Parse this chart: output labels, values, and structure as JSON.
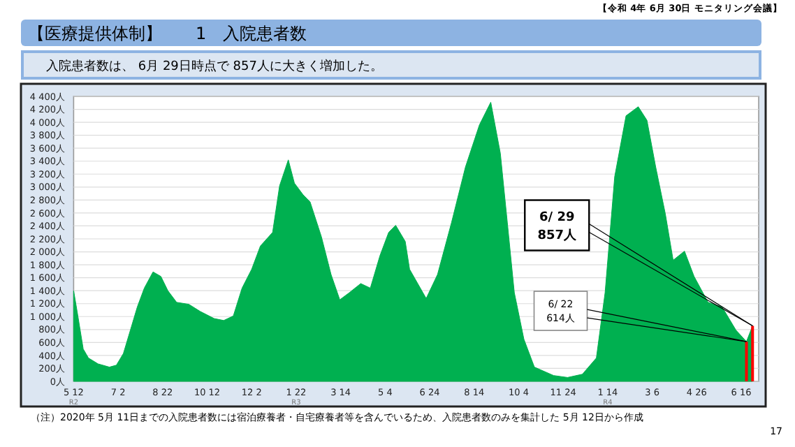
{
  "chart_data": {
    "type": "area",
    "title": "【医療提供体制】　　1　入院患者数",
    "subtitle": "入院患者数は、 6月 29日時点で 857人に大きく増加した。",
    "annotations": [
      "【令和 4年 6月 30日 モニタリング会議】",
      "（注）2020年 5月 11日までの入院患者数には宿泊療養者・自宅療養者等を含んでいるため、入院患者数のみを集計した 5月 12日から作成",
      "17",
      {
        "text": "6/ 29\n857人",
        "x": "2022-06-29",
        "y": 857
      },
      {
        "text": "6/ 22\n614人",
        "x": "2022-06-22",
        "y": 614
      }
    ],
    "grid": "y",
    "xlim": [
      "2020-05-12",
      "2022-07-06"
    ],
    "xticks": [
      {
        "value": "2020-05-12",
        "label": "5 12\nR2"
      },
      {
        "value": "2020-07-02",
        "label": "7 2"
      },
      {
        "value": "2020-08-22",
        "label": "8 22"
      },
      {
        "value": "2020-10-12",
        "label": "10 12"
      },
      {
        "value": "2020-12-02",
        "label": "12 2"
      },
      {
        "value": "2021-01-22",
        "label": "1 22\nR3"
      },
      {
        "value": "2021-03-14",
        "label": "3 14"
      },
      {
        "value": "2021-05-04",
        "label": "5 4"
      },
      {
        "value": "2021-06-24",
        "label": "6 24"
      },
      {
        "value": "2021-08-14",
        "label": "8 14"
      },
      {
        "value": "2021-10-04",
        "label": "10 4"
      },
      {
        "value": "2021-11-24",
        "label": "11 24"
      },
      {
        "value": "2022-01-14",
        "label": "1 14\nR4"
      },
      {
        "value": "2022-03-06",
        "label": "3 6"
      },
      {
        "value": "2022-04-26",
        "label": "4 26"
      },
      {
        "value": "2022-06-16",
        "label": "6 16"
      }
    ],
    "ylim": [
      0,
      4400
    ],
    "yticks": [
      {
        "value": 0,
        "label": "0人"
      },
      {
        "value": 200,
        "label": "200人"
      },
      {
        "value": 400,
        "label": "400人"
      },
      {
        "value": 600,
        "label": "600人"
      },
      {
        "value": 800,
        "label": "800人"
      },
      {
        "value": 1000,
        "label": "1 000人"
      },
      {
        "value": 1200,
        "label": "1 200人"
      },
      {
        "value": 1400,
        "label": "1 400人"
      },
      {
        "value": 1600,
        "label": "1 600人"
      },
      {
        "value": 1800,
        "label": "1 800人"
      },
      {
        "value": 2000,
        "label": "2 000人"
      },
      {
        "value": 2200,
        "label": "2 200人"
      },
      {
        "value": 2400,
        "label": "2 400人"
      },
      {
        "value": 2600,
        "label": "2 600人"
      },
      {
        "value": 2800,
        "label": "2 800人"
      },
      {
        "value": 3000,
        "label": "3 000人"
      },
      {
        "value": 3200,
        "label": "3 200人"
      },
      {
        "value": 3400,
        "label": "3 400人"
      },
      {
        "value": 3600,
        "label": "3 600人"
      },
      {
        "value": 3800,
        "label": "3 800人"
      },
      {
        "value": 4000,
        "label": "4 000人"
      },
      {
        "value": 4200,
        "label": "4 200人"
      },
      {
        "value": 4400,
        "label": "4 400人"
      }
    ],
    "series": [
      {
        "color": "#00b050",
        "x": [
          "2020-05-12",
          "2020-05-16",
          "2020-05-23",
          "2020-05-29",
          "2020-06-09",
          "2020-06-22",
          "2020-06-30",
          "2020-07-08",
          "2020-07-16",
          "2020-07-24",
          "2020-08-01",
          "2020-08-11",
          "2020-08-20",
          "2020-08-28",
          "2020-09-07",
          "2020-09-21",
          "2020-10-04",
          "2020-10-20",
          "2020-10-31",
          "2020-11-11",
          "2020-11-21",
          "2020-12-02",
          "2020-12-12",
          "2020-12-26",
          "2021-01-03",
          "2021-01-13",
          "2021-01-20",
          "2021-01-30",
          "2021-02-07",
          "2021-02-20",
          "2021-03-03",
          "2021-03-13",
          "2021-03-24",
          "2021-04-06",
          "2021-04-17",
          "2021-04-28",
          "2021-05-08",
          "2021-05-16",
          "2021-05-27",
          "2021-06-01",
          "2021-06-20",
          "2021-07-03",
          "2021-07-19",
          "2021-08-04",
          "2021-08-20",
          "2021-09-02",
          "2021-09-13",
          "2021-09-21",
          "2021-09-29",
          "2021-10-10",
          "2021-10-22",
          "2021-11-13",
          "2021-11-29",
          "2021-12-16",
          "2022-01-01",
          "2022-01-11",
          "2022-01-22",
          "2022-02-04",
          "2022-02-18",
          "2022-02-28",
          "2022-03-10",
          "2022-03-21",
          "2022-03-30",
          "2022-04-12",
          "2022-04-23",
          "2022-05-09",
          "2022-05-25",
          "2022-06-10",
          "2022-06-22",
          "2022-06-29"
        ],
        "values": [
          1400,
          1080,
          500,
          360,
          270,
          220,
          250,
          430,
          790,
          1150,
          1440,
          1690,
          1620,
          1400,
          1220,
          1190,
          1080,
          970,
          940,
          1010,
          1440,
          1730,
          2090,
          2300,
          3020,
          3420,
          3060,
          2880,
          2770,
          2230,
          1650,
          1260,
          1370,
          1510,
          1440,
          1940,
          2300,
          2410,
          2160,
          1730,
          1280,
          1650,
          2450,
          3310,
          3960,
          4310,
          3520,
          2450,
          1370,
          650,
          220,
          90,
          60,
          110,
          360,
          1370,
          3160,
          4100,
          4240,
          4030,
          3310,
          2590,
          1870,
          2010,
          1620,
          1220,
          1150,
          790,
          614,
          857
        ]
      },
      {
        "type": "bar",
        "color": "#ff0000",
        "x": [
          "2022-06-22",
          "2022-06-29"
        ],
        "values": [
          614,
          857
        ]
      }
    ]
  }
}
